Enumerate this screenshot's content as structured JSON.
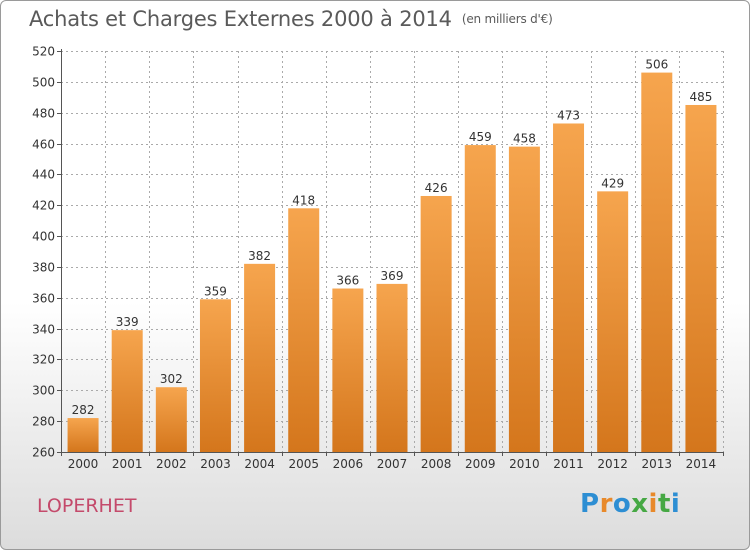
{
  "title": "Achats et Charges Externes 2000 à 2014",
  "unit": "(en milliers d'€)",
  "commune": "LOPERHET",
  "logo": "Proxiti",
  "colors": {
    "bar_top": "#f6a54e",
    "bar_bottom": "#d4761c",
    "grid": "#aaaaaa",
    "logo": [
      "#2d8ed3",
      "#e8892a",
      "#2d8ed3",
      "#46a844",
      "#e8892a",
      "#46a844",
      "#2d8ed3"
    ]
  },
  "chart_data": {
    "type": "bar",
    "categories": [
      "2000",
      "2001",
      "2002",
      "2003",
      "2004",
      "2005",
      "2006",
      "2007",
      "2008",
      "2009",
      "2010",
      "2011",
      "2012",
      "2013",
      "2014"
    ],
    "values": [
      282,
      339,
      302,
      359,
      382,
      418,
      366,
      369,
      426,
      459,
      458,
      473,
      429,
      506,
      485
    ],
    "ylim": [
      260,
      520
    ],
    "yticks": [
      260,
      280,
      300,
      320,
      340,
      360,
      380,
      400,
      420,
      440,
      460,
      480,
      500,
      520
    ],
    "grid": true,
    "data_labels": true
  }
}
